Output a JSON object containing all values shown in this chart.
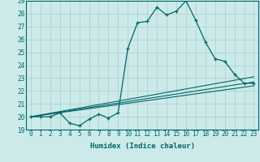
{
  "title": "",
  "xlabel": "Humidex (Indice chaleur)",
  "background_color": "#cceaea",
  "grid_color": "#aacccc",
  "line_color": "#006666",
  "xlim": [
    -0.5,
    23.5
  ],
  "ylim": [
    19,
    29
  ],
  "xticks": [
    0,
    1,
    2,
    3,
    4,
    5,
    6,
    7,
    8,
    9,
    10,
    11,
    12,
    13,
    14,
    15,
    16,
    17,
    18,
    19,
    20,
    21,
    22,
    23
  ],
  "yticks": [
    19,
    20,
    21,
    22,
    23,
    24,
    25,
    26,
    27,
    28,
    29
  ],
  "curve1_x": [
    0,
    1,
    2,
    3,
    4,
    5,
    6,
    7,
    8,
    9,
    10,
    11,
    12,
    13,
    14,
    15,
    16,
    17,
    18,
    19,
    20,
    21,
    22,
    23
  ],
  "curve1_y": [
    20.0,
    20.0,
    20.0,
    20.3,
    19.5,
    19.3,
    19.8,
    20.2,
    19.9,
    20.3,
    25.3,
    27.3,
    27.4,
    28.5,
    27.9,
    28.2,
    29.0,
    27.5,
    25.8,
    24.5,
    24.3,
    23.3,
    22.6,
    22.6
  ],
  "line1": [
    [
      0,
      23
    ],
    [
      20.0,
      22.4
    ]
  ],
  "line2": [
    [
      0,
      23
    ],
    [
      20.0,
      22.7
    ]
  ],
  "line3": [
    [
      0,
      23
    ],
    [
      20.0,
      23.1
    ]
  ]
}
